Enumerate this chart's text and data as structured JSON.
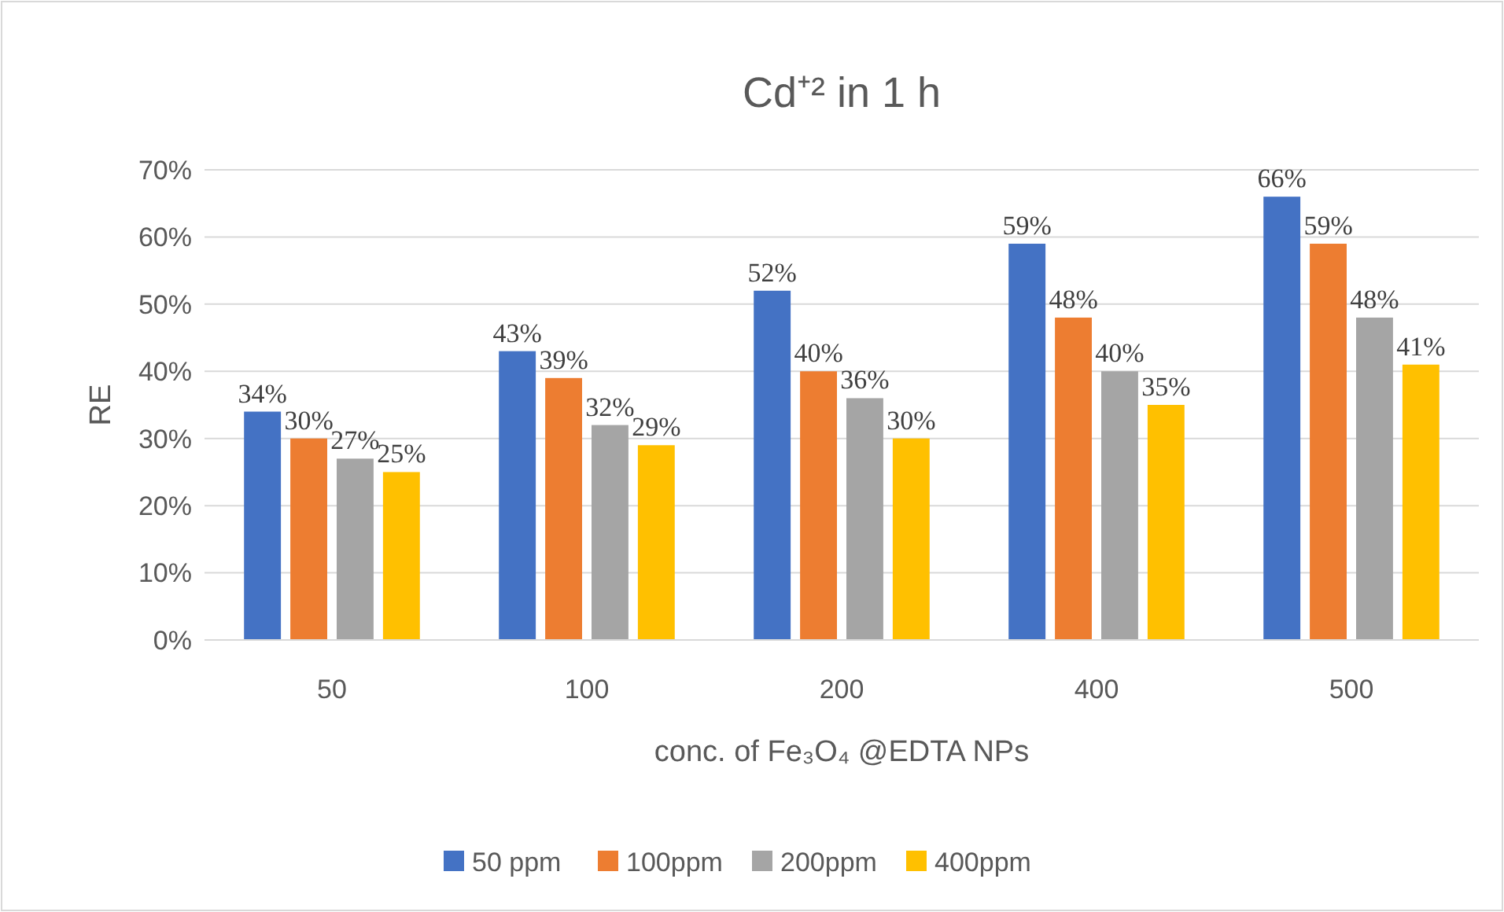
{
  "chart_data": {
    "type": "bar",
    "title": "Cd⁺²  in 1 h",
    "xlabel": "conc. of Fe₃O₄ @EDTA NPs",
    "ylabel": "RE",
    "categories": [
      "50",
      "100",
      "200",
      "400",
      "500"
    ],
    "series": [
      {
        "name": "50 ppm",
        "color": "#4472c4",
        "values": [
          34,
          43,
          52,
          59,
          66
        ],
        "value_labels": [
          "34%",
          "43%",
          "52%",
          "59%",
          "66%"
        ]
      },
      {
        "name": "100ppm",
        "color": "#ed7d31",
        "values": [
          30,
          39,
          40,
          48,
          59
        ],
        "value_labels": [
          "30%",
          "39%",
          "40%",
          "48%",
          "59%"
        ]
      },
      {
        "name": "200ppm",
        "color": "#a5a5a5",
        "values": [
          27,
          32,
          36,
          40,
          48
        ],
        "value_labels": [
          "27%",
          "32%",
          "36%",
          "40%",
          "48%"
        ]
      },
      {
        "name": "400ppm",
        "color": "#ffc000",
        "values": [
          25,
          29,
          30,
          35,
          41
        ],
        "value_labels": [
          "25%",
          "29%",
          "30%",
          "35%",
          "41%"
        ]
      }
    ],
    "ylim": [
      0,
      70
    ],
    "yticks": [
      {
        "value": 0,
        "label": "0%"
      },
      {
        "value": 10,
        "label": "10%"
      },
      {
        "value": 20,
        "label": "20%"
      },
      {
        "value": 30,
        "label": "30%"
      },
      {
        "value": 40,
        "label": "40%"
      },
      {
        "value": 50,
        "label": "50%"
      },
      {
        "value": 60,
        "label": "60%"
      },
      {
        "value": 70,
        "label": "70%"
      }
    ],
    "grid": "y",
    "legend": "bottom"
  }
}
